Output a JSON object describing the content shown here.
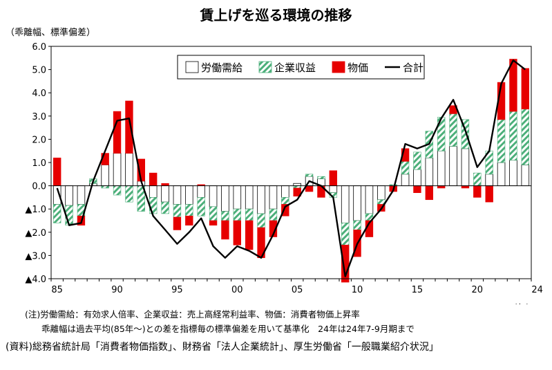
{
  "title": "賃上げを巡る環境の推移",
  "unit_label": "（乖離幅、標準偏差）",
  "notes": {
    "line1": "(注)労働需給：有効求人倍率、企業収益：売上高経常利益率、物価：消費者物価上昇率",
    "line2": "乖離幅は過去平均(85年～)との差を指標毎の標準偏差を用いて基準化　24年は24年7-9月期まで",
    "source": "(資料)総務省統計局「消費者物価指数」、財務省「法人企業統計」、厚生労働省「一般職業紹介状況」"
  },
  "chart_data": {
    "type": "bar",
    "stacked": true,
    "title": "賃上げを巡る環境の推移",
    "xlabel": "（年）",
    "ylabel": "（乖離幅、標準偏差）",
    "ylim": [
      -4.0,
      6.0
    ],
    "yticks": [
      6.0,
      5.0,
      4.0,
      3.0,
      2.0,
      1.0,
      0.0,
      -1.0,
      -2.0,
      -3.0,
      -4.0
    ],
    "ytick_labels": [
      "6.0",
      "5.0",
      "4.0",
      "3.0",
      "2.0",
      "1.0",
      "0.0",
      "▲1.0",
      "▲2.0",
      "▲3.0",
      "▲4.0"
    ],
    "xtick_labels": [
      {
        "index": 0,
        "label": "85"
      },
      {
        "index": 5,
        "label": "90"
      },
      {
        "index": 10,
        "label": "95"
      },
      {
        "index": 15,
        "label": "00"
      },
      {
        "index": 20,
        "label": "05"
      },
      {
        "index": 25,
        "label": "10"
      },
      {
        "index": 30,
        "label": "15"
      },
      {
        "index": 35,
        "label": "20"
      },
      {
        "index": 40,
        "label": "24"
      }
    ],
    "categories": [
      "1985",
      "1986",
      "1987",
      "1988",
      "1989",
      "1990",
      "1991",
      "1992",
      "1993",
      "1994",
      "1995",
      "1996",
      "1997",
      "1998",
      "1999",
      "2000",
      "2001",
      "2002",
      "2003",
      "2004",
      "2005",
      "2006",
      "2007",
      "2008",
      "2009",
      "2010",
      "2011",
      "2012",
      "2013",
      "2014",
      "2015",
      "2016",
      "2017",
      "2018",
      "2019",
      "2020",
      "2021",
      "2022",
      "2023",
      "2024"
    ],
    "legend_position": "top-right",
    "series": [
      {
        "name": "労働需給",
        "kind": "bar",
        "color": "#ffffff",
        "edge": "#000000",
        "values": [
          -0.8,
          -0.85,
          -0.8,
          0.1,
          0.9,
          1.4,
          1.4,
          0.2,
          -0.5,
          -0.7,
          -0.8,
          -0.8,
          -0.5,
          -0.9,
          -1.1,
          -1.0,
          -1.0,
          -1.2,
          -1.0,
          -0.5,
          0.1,
          0.4,
          0.3,
          -0.3,
          -1.6,
          -1.5,
          -1.2,
          -0.6,
          0.0,
          0.5,
          0.7,
          1.2,
          1.5,
          1.7,
          1.6,
          0.0,
          0.5,
          1.0,
          1.1,
          0.9
        ]
      },
      {
        "name": "企業収益",
        "kind": "bar",
        "color": "#4caf7a",
        "hatch": true,
        "values": [
          -0.8,
          -0.85,
          -0.5,
          0.2,
          -0.1,
          -0.4,
          -0.7,
          -1.1,
          -0.7,
          -0.5,
          -0.55,
          -0.5,
          -0.8,
          -0.6,
          -0.4,
          -0.5,
          -0.5,
          -0.6,
          -0.5,
          -0.3,
          -0.1,
          0.1,
          0.1,
          -0.2,
          -0.95,
          -0.4,
          -0.3,
          -0.2,
          0.05,
          0.55,
          0.75,
          1.15,
          1.45,
          1.4,
          1.25,
          0.55,
          1.0,
          1.85,
          2.1,
          2.4
        ]
      },
      {
        "name": "物価",
        "kind": "bar",
        "color": "#e60000",
        "values": [
          1.2,
          0.0,
          -0.4,
          0.0,
          0.5,
          1.8,
          2.25,
          0.95,
          0.55,
          0.1,
          -0.55,
          -0.4,
          0.05,
          -0.2,
          -0.8,
          -1.05,
          -1.25,
          -1.3,
          -0.7,
          -0.5,
          -0.35,
          -0.25,
          -0.5,
          0.65,
          -1.6,
          -1.15,
          -0.7,
          -0.3,
          -0.25,
          0.55,
          -0.3,
          -0.6,
          -0.1,
          0.35,
          -0.1,
          -0.5,
          -0.7,
          1.6,
          2.25,
          1.75
        ]
      },
      {
        "name": "合計",
        "kind": "line",
        "color": "#000000",
        "values": [
          -0.1,
          -1.7,
          -1.6,
          0.2,
          1.5,
          2.8,
          2.9,
          0.2,
          -1.3,
          -1.9,
          -2.5,
          -2.0,
          -1.4,
          -2.6,
          -3.1,
          -2.6,
          -2.8,
          -3.1,
          -2.1,
          -0.9,
          -0.6,
          0.2,
          0.0,
          -0.5,
          -3.9,
          -2.5,
          -1.6,
          -1.0,
          -0.2,
          1.8,
          1.6,
          1.8,
          2.9,
          3.7,
          2.4,
          0.8,
          1.5,
          4.4,
          5.4,
          5.0
        ]
      }
    ]
  }
}
